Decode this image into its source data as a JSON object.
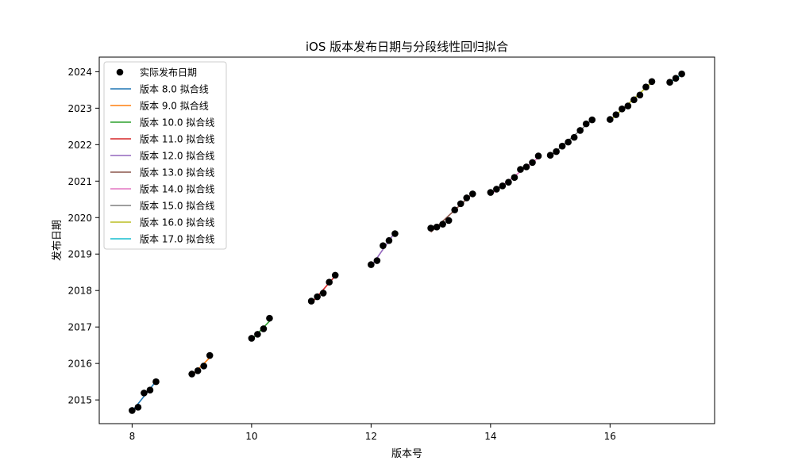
{
  "chart_data": {
    "type": "scatter",
    "title": "iOS 版本发布日期与分段线性回归拟合",
    "xlabel": "版本号",
    "ylabel": "发布日期",
    "xlim": [
      7.45,
      17.75
    ],
    "ylim": [
      2014.35,
      2024.4
    ],
    "xticks": [
      8,
      10,
      12,
      14,
      16
    ],
    "xtick_labels": [
      "8",
      "10",
      "12",
      "14",
      "16"
    ],
    "yticks": [
      2015,
      2016,
      2017,
      2018,
      2019,
      2020,
      2021,
      2022,
      2023,
      2024
    ],
    "ytick_labels": [
      "2015",
      "2016",
      "2017",
      "2018",
      "2019",
      "2020",
      "2021",
      "2022",
      "2023",
      "2024"
    ],
    "grid": false,
    "legend_position": "top-left",
    "scatter_series": {
      "name": "实际发布日期",
      "color": "#000000",
      "points": [
        {
          "x": 8.0,
          "y": 2014.71
        },
        {
          "x": 8.1,
          "y": 2014.8
        },
        {
          "x": 8.2,
          "y": 2015.19
        },
        {
          "x": 8.3,
          "y": 2015.27
        },
        {
          "x": 8.4,
          "y": 2015.5
        },
        {
          "x": 9.0,
          "y": 2015.71
        },
        {
          "x": 9.1,
          "y": 2015.8
        },
        {
          "x": 9.2,
          "y": 2015.93
        },
        {
          "x": 9.3,
          "y": 2016.22
        },
        {
          "x": 10.0,
          "y": 2016.69
        },
        {
          "x": 10.1,
          "y": 2016.8
        },
        {
          "x": 10.2,
          "y": 2016.95
        },
        {
          "x": 10.3,
          "y": 2017.24
        },
        {
          "x": 11.0,
          "y": 2017.71
        },
        {
          "x": 11.1,
          "y": 2017.83
        },
        {
          "x": 11.2,
          "y": 2017.93
        },
        {
          "x": 11.3,
          "y": 2018.23
        },
        {
          "x": 11.4,
          "y": 2018.42
        },
        {
          "x": 12.0,
          "y": 2018.71
        },
        {
          "x": 12.1,
          "y": 2018.82
        },
        {
          "x": 12.2,
          "y": 2019.23
        },
        {
          "x": 12.3,
          "y": 2019.37
        },
        {
          "x": 12.4,
          "y": 2019.56
        },
        {
          "x": 13.0,
          "y": 2019.71
        },
        {
          "x": 13.1,
          "y": 2019.74
        },
        {
          "x": 13.2,
          "y": 2019.82
        },
        {
          "x": 13.3,
          "y": 2019.92
        },
        {
          "x": 13.4,
          "y": 2020.21
        },
        {
          "x": 13.5,
          "y": 2020.38
        },
        {
          "x": 13.6,
          "y": 2020.54
        },
        {
          "x": 13.7,
          "y": 2020.65
        },
        {
          "x": 14.0,
          "y": 2020.69
        },
        {
          "x": 14.1,
          "y": 2020.78
        },
        {
          "x": 14.2,
          "y": 2020.87
        },
        {
          "x": 14.3,
          "y": 2020.97
        },
        {
          "x": 14.4,
          "y": 2021.1
        },
        {
          "x": 14.5,
          "y": 2021.32
        },
        {
          "x": 14.6,
          "y": 2021.39
        },
        {
          "x": 14.7,
          "y": 2021.51
        },
        {
          "x": 14.8,
          "y": 2021.69
        },
        {
          "x": 15.0,
          "y": 2021.71
        },
        {
          "x": 15.1,
          "y": 2021.81
        },
        {
          "x": 15.2,
          "y": 2021.96
        },
        {
          "x": 15.3,
          "y": 2022.07
        },
        {
          "x": 15.4,
          "y": 2022.2
        },
        {
          "x": 15.5,
          "y": 2022.39
        },
        {
          "x": 15.6,
          "y": 2022.57
        },
        {
          "x": 15.7,
          "y": 2022.68
        },
        {
          "x": 16.0,
          "y": 2022.69
        },
        {
          "x": 16.1,
          "y": 2022.82
        },
        {
          "x": 16.2,
          "y": 2022.98
        },
        {
          "x": 16.3,
          "y": 2023.06
        },
        {
          "x": 16.4,
          "y": 2023.23
        },
        {
          "x": 16.5,
          "y": 2023.36
        },
        {
          "x": 16.6,
          "y": 2023.58
        },
        {
          "x": 16.7,
          "y": 2023.73
        },
        {
          "x": 17.0,
          "y": 2023.71
        },
        {
          "x": 17.1,
          "y": 2023.82
        },
        {
          "x": 17.2,
          "y": 2023.94
        }
      ]
    },
    "fit_series": [
      {
        "name": "版本 8.0 拟合线",
        "color": "#1f77b4",
        "x": [
          8.0,
          8.4
        ],
        "y": [
          2014.69,
          2015.51
        ]
      },
      {
        "name": "版本 9.0 拟合线",
        "color": "#ff7f0e",
        "x": [
          9.0,
          9.3
        ],
        "y": [
          2015.67,
          2016.16
        ]
      },
      {
        "name": "版本 10.0 拟合线",
        "color": "#2ca02c",
        "x": [
          10.0,
          10.3
        ],
        "y": [
          2016.65,
          2017.16
        ]
      },
      {
        "name": "版本 11.0 拟合线",
        "color": "#d62728",
        "x": [
          11.0,
          11.4
        ],
        "y": [
          2017.65,
          2018.4
        ]
      },
      {
        "name": "版本 12.0 拟合线",
        "color": "#9467bd",
        "x": [
          12.0,
          12.4
        ],
        "y": [
          2018.66,
          2019.6
        ]
      },
      {
        "name": "版本 13.0 拟合线",
        "color": "#8c564b",
        "x": [
          13.0,
          13.7
        ],
        "y": [
          2019.6,
          2020.66
        ]
      },
      {
        "name": "版本 14.0 拟合线",
        "color": "#e377c2",
        "x": [
          14.0,
          14.8
        ],
        "y": [
          2020.63,
          2021.64
        ]
      },
      {
        "name": "版本 15.0 拟合线",
        "color": "#7f7f7f",
        "x": [
          15.0,
          15.7
        ],
        "y": [
          2021.68,
          2022.68
        ]
      },
      {
        "name": "版本 16.0 拟合线",
        "color": "#bcbd22",
        "x": [
          16.0,
          16.7
        ],
        "y": [
          2022.66,
          2023.71
        ]
      },
      {
        "name": "版本 17.0 拟合线",
        "color": "#17becf",
        "x": [
          17.0,
          17.2
        ],
        "y": [
          2023.7,
          2023.93
        ]
      }
    ]
  }
}
